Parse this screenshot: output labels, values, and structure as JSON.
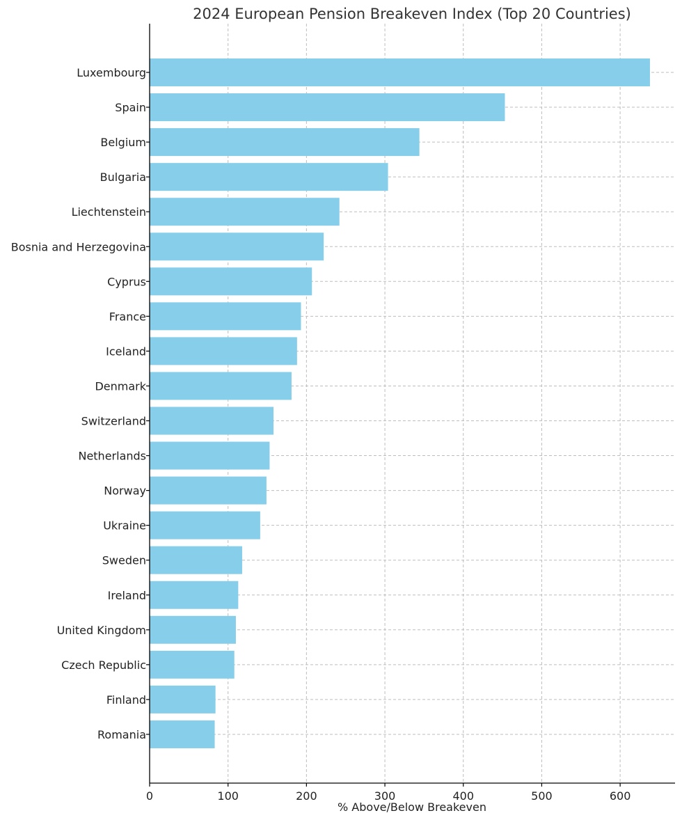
{
  "chart_data": {
    "type": "bar",
    "orientation": "horizontal",
    "title": "2024 European Pension Breakeven Index (Top 20 Countries)",
    "xlabel": "% Above/Below Breakeven",
    "ylabel": "",
    "xlim": [
      0,
      670
    ],
    "xticks": [
      0,
      100,
      200,
      300,
      400,
      500,
      600
    ],
    "grid": true,
    "bar_color": "#87CEEB",
    "categories": [
      "Luxembourg",
      "Spain",
      "Belgium",
      "Bulgaria",
      "Liechtenstein",
      "Bosnia and Herzegovina",
      "Cyprus",
      "France",
      "Iceland",
      "Denmark",
      "Switzerland",
      "Netherlands",
      "Norway",
      "Ukraine",
      "Sweden",
      "Ireland",
      "United Kingdom",
      "Czech Republic",
      "Finland",
      "Romania"
    ],
    "values": [
      638,
      453,
      344,
      304,
      242,
      222,
      207,
      193,
      188,
      181,
      158,
      153,
      149,
      141,
      118,
      113,
      110,
      108,
      84,
      83
    ]
  }
}
